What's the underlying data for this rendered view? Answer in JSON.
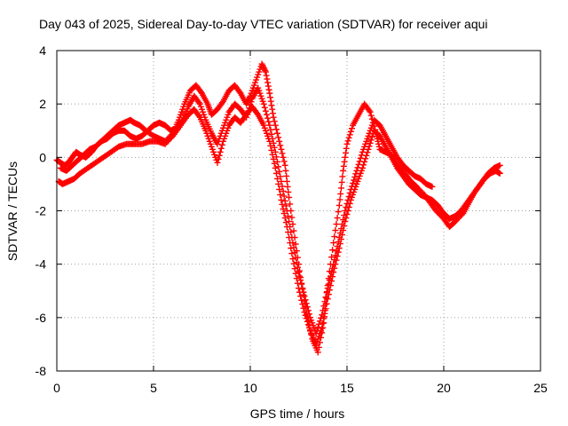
{
  "chart_data": {
    "type": "scatter",
    "title": "Day 043 of 2025, Sidereal Day-to-day VTEC variation (SDTVAR) for receiver aqui",
    "xlabel": "GPS time / hours",
    "ylabel": "SDTVAR / TECUs",
    "xlim": [
      0,
      25
    ],
    "ylim": [
      -8,
      4
    ],
    "xticks": [
      "0",
      "5",
      "10",
      "15",
      "20",
      "25"
    ],
    "yticks": [
      "-8",
      "-6",
      "-4",
      "-2",
      "0",
      "2",
      "4"
    ],
    "grid": true,
    "marker": "+",
    "series_color": "#ff0000",
    "series": [
      {
        "x": [
          0.0,
          0.2,
          0.4,
          0.6,
          0.8,
          1.0,
          1.2,
          1.5,
          1.8,
          2.0,
          2.3,
          2.6,
          2.9,
          3.2,
          3.5,
          3.8,
          4.0,
          4.3,
          4.6,
          5.0,
          5.3,
          5.6,
          6.0,
          6.3,
          6.6,
          6.9,
          7.2,
          7.5,
          7.8,
          8.0,
          8.3,
          8.6,
          8.9,
          9.2,
          9.5,
          9.8,
          10.0,
          10.3,
          10.6,
          10.8,
          11.0,
          11.2,
          11.5,
          11.8,
          12.0,
          12.3,
          12.6,
          12.9,
          13.2,
          13.5,
          13.8,
          14.0,
          14.3,
          14.6,
          14.8,
          15.0,
          15.3,
          15.6,
          15.9,
          16.2,
          16.5,
          16.7,
          17.0,
          17.3,
          17.6,
          18.0,
          18.3,
          18.6,
          19.0,
          19.3,
          19.6,
          20.0,
          20.3,
          20.6,
          21.0,
          21.3,
          21.6,
          22.0,
          22.3,
          22.6,
          22.9
        ],
        "y": [
          -0.1,
          -0.2,
          -0.3,
          -0.2,
          0.0,
          0.2,
          0.1,
          0.0,
          0.2,
          0.4,
          0.6,
          0.8,
          1.0,
          1.2,
          1.3,
          1.4,
          1.3,
          1.2,
          1.0,
          0.8,
          0.7,
          0.6,
          0.9,
          1.4,
          2.0,
          2.5,
          2.7,
          2.4,
          2.0,
          1.6,
          1.8,
          2.1,
          2.5,
          2.7,
          2.4,
          2.0,
          2.3,
          2.9,
          3.5,
          3.2,
          2.4,
          1.5,
          0.6,
          -0.3,
          -1.5,
          -3.0,
          -4.5,
          -5.8,
          -6.8,
          -7.3,
          -6.2,
          -4.8,
          -3.2,
          -1.8,
          -0.5,
          0.5,
          1.2,
          1.6,
          2.0,
          1.7,
          0.9,
          0.3,
          0.2,
          0.1,
          -0.3,
          -0.6,
          -0.9,
          -1.1,
          -1.4,
          -1.7,
          -2.0,
          -2.3,
          -2.6,
          -2.4,
          -2.1,
          -1.7,
          -1.3,
          -0.9,
          -0.6,
          -0.4,
          -0.3
        ]
      },
      {
        "x": [
          0.1,
          0.3,
          0.6,
          0.9,
          1.2,
          1.6,
          2.0,
          2.4,
          2.8,
          3.2,
          3.6,
          4.0,
          4.4,
          4.8,
          5.2,
          5.6,
          6.0,
          6.4,
          6.8,
          7.1,
          7.4,
          7.7,
          8.0,
          8.3,
          8.6,
          8.9,
          9.2,
          9.5,
          9.8,
          10.1,
          10.4,
          10.7,
          11.0,
          11.3,
          11.6,
          11.9,
          12.2,
          12.5,
          12.8,
          13.1,
          13.4,
          13.7,
          14.0,
          14.3,
          14.6,
          14.9,
          15.2,
          15.5,
          15.8,
          16.1,
          16.4,
          16.7,
          17.0,
          17.3,
          17.6,
          17.9,
          18.2,
          18.5,
          18.8,
          19.1,
          19.4,
          19.7,
          20.0,
          20.3,
          20.6,
          20.9,
          21.2,
          21.5,
          21.8,
          22.1,
          22.4,
          22.7,
          22.9
        ],
        "y": [
          -0.9,
          -1.0,
          -0.9,
          -0.8,
          -0.6,
          -0.4,
          -0.2,
          0.0,
          0.2,
          0.4,
          0.5,
          0.5,
          0.5,
          0.6,
          0.6,
          0.5,
          0.8,
          1.2,
          1.6,
          1.8,
          1.5,
          1.0,
          0.4,
          -0.2,
          0.6,
          1.2,
          1.5,
          1.3,
          1.6,
          1.9,
          1.6,
          1.2,
          0.6,
          -0.4,
          -1.6,
          -2.6,
          -3.8,
          -4.9,
          -5.8,
          -6.5,
          -7.0,
          -6.4,
          -5.3,
          -4.3,
          -3.4,
          -2.4,
          -1.6,
          -1.0,
          -0.4,
          0.3,
          1.0,
          0.8,
          0.4,
          0.0,
          -0.4,
          -0.7,
          -1.0,
          -1.2,
          -1.4,
          -1.5,
          -1.6,
          -1.8,
          -2.1,
          -2.3,
          -2.2,
          -2.0,
          -1.7,
          -1.4,
          -1.1,
          -0.8,
          -0.6,
          -0.5,
          -0.6
        ]
      },
      {
        "x": [
          0.2,
          0.5,
          0.8,
          1.1,
          1.4,
          1.7,
          2.0,
          2.3,
          2.6,
          2.9,
          3.2,
          3.5,
          3.8,
          4.1,
          4.4,
          4.7,
          5.0,
          5.3,
          5.6,
          5.9,
          6.2,
          6.5,
          6.8,
          7.1,
          7.4,
          7.7,
          8.0,
          8.3,
          8.6,
          8.9,
          9.2,
          9.5,
          9.8,
          10.1,
          10.4,
          10.7,
          11.0,
          11.3,
          11.6,
          11.9,
          12.2,
          12.5,
          12.8,
          13.1,
          13.4,
          13.7,
          14.0,
          14.3,
          14.6,
          14.9,
          15.2,
          15.5,
          15.8,
          16.1,
          16.4,
          16.7,
          17.0,
          17.3,
          17.6,
          17.9,
          18.2,
          18.5,
          18.8,
          19.1,
          19.4
        ],
        "y": [
          -0.4,
          -0.5,
          -0.3,
          -0.1,
          0.1,
          0.3,
          0.4,
          0.6,
          0.7,
          0.9,
          1.0,
          1.0,
          0.8,
          0.7,
          0.8,
          1.0,
          1.2,
          1.3,
          1.2,
          1.0,
          1.1,
          1.4,
          1.9,
          2.3,
          2.0,
          1.4,
          0.9,
          0.5,
          1.1,
          1.7,
          2.0,
          1.8,
          1.5,
          2.2,
          2.6,
          2.0,
          1.2,
          0.2,
          -0.9,
          -2.0,
          -3.2,
          -4.3,
          -5.2,
          -6.0,
          -6.6,
          -5.9,
          -4.9,
          -4.0,
          -3.0,
          -2.0,
          -1.2,
          -0.5,
          0.2,
          0.8,
          1.4,
          1.2,
          0.8,
          0.4,
          0.0,
          -0.3,
          -0.5,
          -0.7,
          -0.8,
          -1.0,
          -1.1
        ]
      }
    ]
  }
}
